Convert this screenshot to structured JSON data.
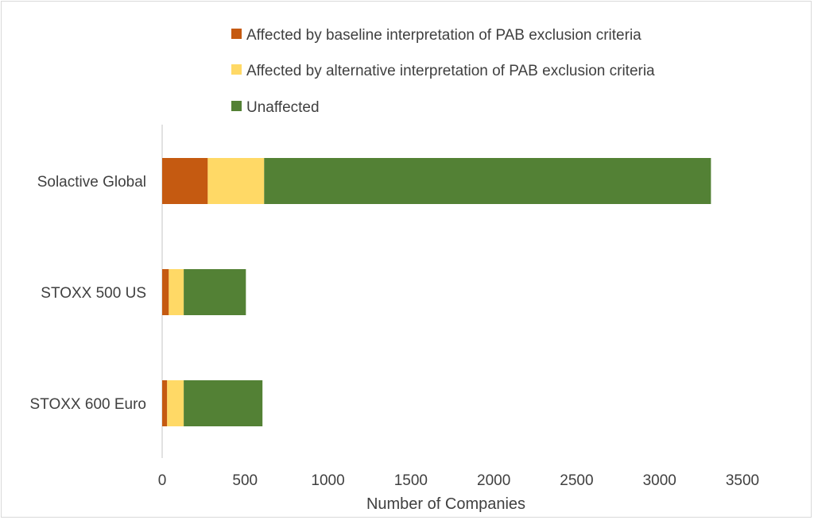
{
  "chart_data": {
    "type": "bar",
    "orientation": "horizontal",
    "stacked": true,
    "categories": [
      "Solactive Global",
      "STOXX 500 US",
      "STOXX 600 Euro"
    ],
    "series": [
      {
        "name": "Affected by baseline interpretation of PAB exclusion criteria",
        "color": "#c55a11",
        "values": [
          275,
          40,
          30
        ]
      },
      {
        "name": "Affected by alternative interpretation of PAB exclusion criteria",
        "color": "#ffd966",
        "values": [
          340,
          90,
          100
        ]
      },
      {
        "name": "Unaffected",
        "color": "#538135",
        "values": [
          2695,
          375,
          475
        ]
      }
    ],
    "xlabel": "Number of Companies",
    "ylabel": "",
    "xlim": [
      0,
      3500
    ],
    "xticks": [
      "0",
      "500",
      "1000",
      "1500",
      "2000",
      "2500",
      "3000",
      "3500"
    ],
    "grid": false,
    "legend_position": "top"
  }
}
